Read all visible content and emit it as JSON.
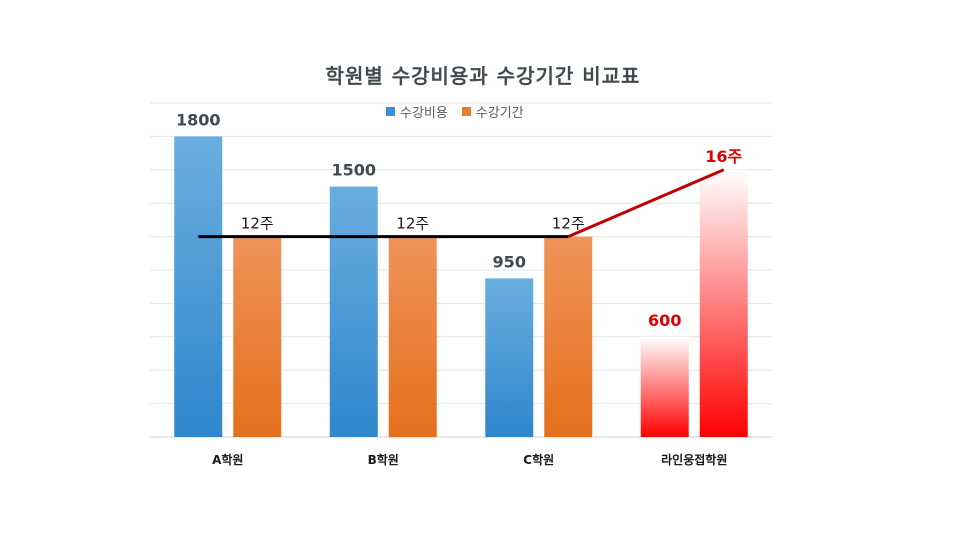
{
  "chart_data": {
    "type": "bar",
    "title": "학원별 수강비용과 수강기간 비교표",
    "categories": [
      "A학원",
      "B학원",
      "C학원",
      "라인웅접학원"
    ],
    "series": [
      {
        "name": "수강비용",
        "values": [
          1800,
          1500,
          950,
          600
        ],
        "labels": [
          "1800",
          "1500",
          "950",
          "600"
        ],
        "color": "#3d8fd4"
      },
      {
        "name": "수강기간",
        "values": [
          12,
          12,
          12,
          16
        ],
        "labels": [
          "12주",
          "12주",
          "12주",
          "16주"
        ],
        "color": "#ee7b2c"
      }
    ],
    "highlight_color": "#e00000",
    "ylim": [
      0,
      2000
    ],
    "grid": true,
    "legend_position": "top"
  }
}
